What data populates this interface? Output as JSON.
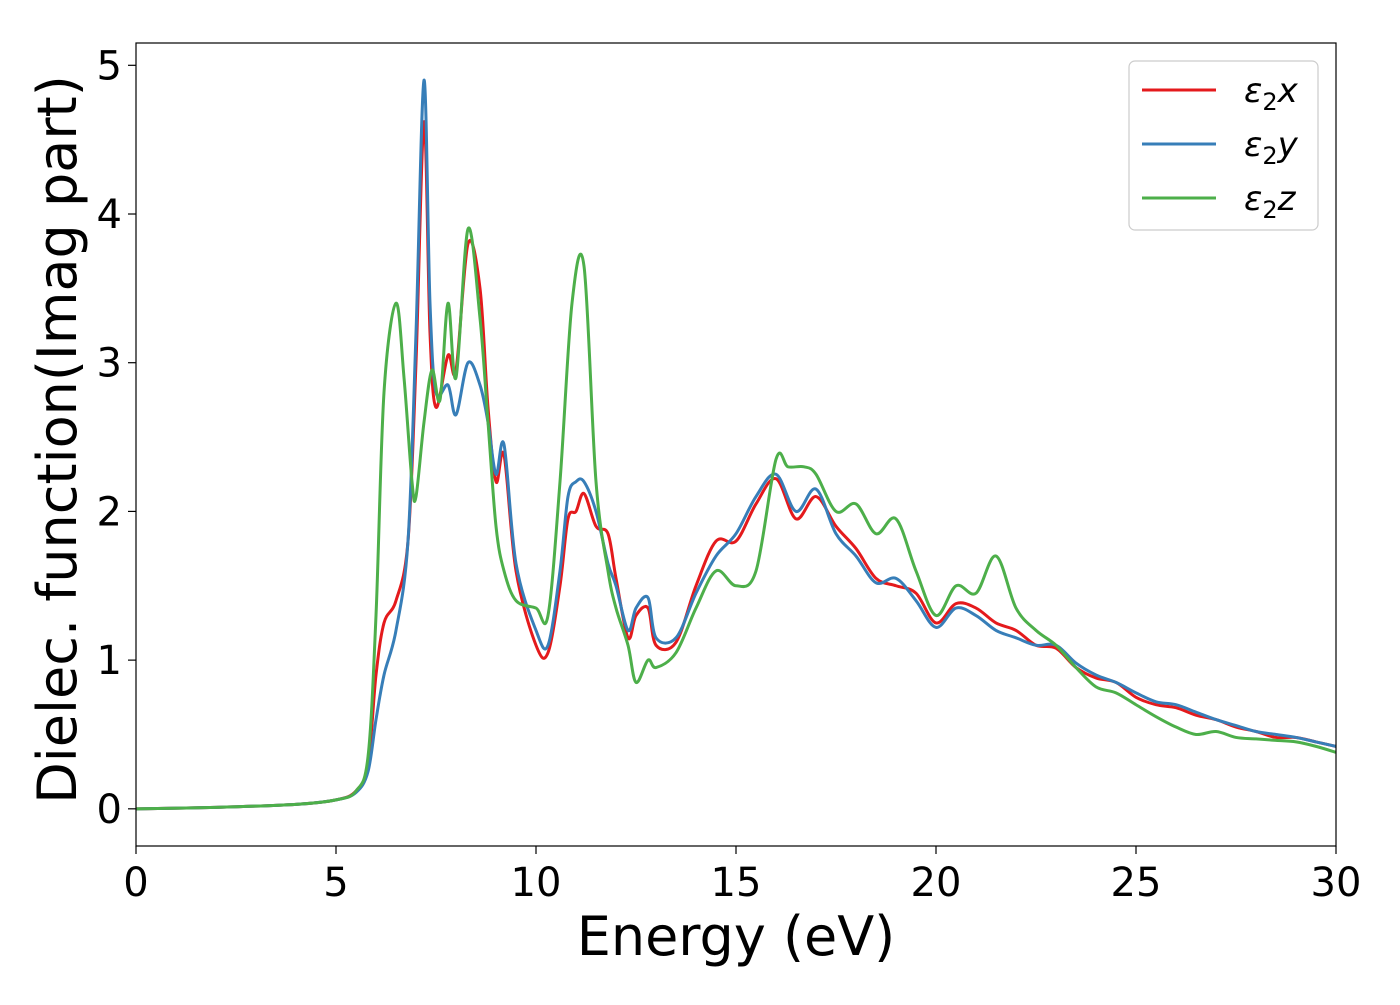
{
  "chart_data": {
    "type": "line",
    "title": "",
    "xlabel": "Energy (eV)",
    "ylabel": "Dielec. function(Imag part)",
    "xlim": [
      0,
      30
    ],
    "ylim": [
      -0.25,
      5.15
    ],
    "xticks": [
      0,
      5,
      10,
      15,
      20,
      25,
      30
    ],
    "yticks": [
      0,
      1,
      2,
      3,
      4,
      5
    ],
    "grid": false,
    "legend_position": "top-right",
    "series": [
      {
        "name": "ε₂x",
        "legend_base": "ε",
        "legend_sub": "2",
        "legend_var": "x",
        "color": "#e41a1c",
        "x": [
          0,
          2,
          4,
          5,
          5.5,
          5.8,
          6.0,
          6.2,
          6.5,
          6.8,
          7.0,
          7.2,
          7.35,
          7.5,
          7.8,
          8.0,
          8.3,
          8.6,
          8.8,
          9.0,
          9.2,
          9.5,
          10.0,
          10.3,
          10.6,
          10.8,
          11.0,
          11.2,
          11.5,
          11.8,
          12.0,
          12.3,
          12.5,
          12.8,
          13.0,
          13.5,
          14.0,
          14.5,
          15.0,
          15.5,
          16.0,
          16.5,
          17.0,
          17.5,
          18.0,
          18.5,
          19.0,
          19.5,
          20.0,
          20.5,
          21.0,
          21.5,
          22.0,
          22.5,
          23.0,
          23.5,
          24.0,
          24.5,
          25.0,
          25.5,
          26.0,
          26.5,
          27.0,
          27.5,
          28.0,
          28.5,
          29.0,
          29.5,
          30.0
        ],
        "y": [
          0,
          0.01,
          0.03,
          0.06,
          0.12,
          0.3,
          0.9,
          1.25,
          1.4,
          1.8,
          3.0,
          4.62,
          3.2,
          2.7,
          3.05,
          2.95,
          3.8,
          3.5,
          2.7,
          2.2,
          2.38,
          1.6,
          1.1,
          1.05,
          1.5,
          1.95,
          2.0,
          2.12,
          1.9,
          1.85,
          1.55,
          1.15,
          1.3,
          1.35,
          1.1,
          1.12,
          1.5,
          1.8,
          1.8,
          2.05,
          2.22,
          1.95,
          2.1,
          1.9,
          1.75,
          1.55,
          1.5,
          1.45,
          1.25,
          1.38,
          1.35,
          1.25,
          1.2,
          1.1,
          1.08,
          0.95,
          0.88,
          0.85,
          0.75,
          0.7,
          0.68,
          0.63,
          0.6,
          0.55,
          0.52,
          0.48,
          0.48,
          0.45,
          0.42
        ]
      },
      {
        "name": "ε₂y",
        "legend_base": "ε",
        "legend_sub": "2",
        "legend_var": "y",
        "color": "#377eb8",
        "x": [
          0,
          2,
          4,
          5,
          5.5,
          5.8,
          6.0,
          6.2,
          6.5,
          6.8,
          7.0,
          7.2,
          7.35,
          7.5,
          7.8,
          8.0,
          8.3,
          8.6,
          8.8,
          9.0,
          9.2,
          9.5,
          10.0,
          10.3,
          10.6,
          10.8,
          11.0,
          11.2,
          11.5,
          11.8,
          12.0,
          12.3,
          12.5,
          12.8,
          13.0,
          13.5,
          14.0,
          14.5,
          15.0,
          15.5,
          16.0,
          16.5,
          17.0,
          17.5,
          18.0,
          18.5,
          19.0,
          19.5,
          20.0,
          20.5,
          21.0,
          21.5,
          22.0,
          22.5,
          23.0,
          23.5,
          24.0,
          24.5,
          25.0,
          25.5,
          26.0,
          26.5,
          27.0,
          27.5,
          28.0,
          28.5,
          29.0,
          29.5,
          30.0
        ],
        "y": [
          0,
          0.01,
          0.03,
          0.06,
          0.11,
          0.25,
          0.6,
          0.9,
          1.2,
          1.8,
          3.2,
          4.9,
          3.4,
          2.8,
          2.85,
          2.65,
          3.0,
          2.85,
          2.6,
          2.25,
          2.45,
          1.65,
          1.2,
          1.1,
          1.6,
          2.1,
          2.2,
          2.2,
          2.0,
          1.65,
          1.5,
          1.2,
          1.35,
          1.42,
          1.15,
          1.15,
          1.45,
          1.7,
          1.85,
          2.1,
          2.25,
          2.0,
          2.15,
          1.85,
          1.7,
          1.52,
          1.55,
          1.4,
          1.22,
          1.35,
          1.3,
          1.2,
          1.15,
          1.1,
          1.1,
          0.98,
          0.9,
          0.85,
          0.78,
          0.72,
          0.7,
          0.65,
          0.6,
          0.56,
          0.52,
          0.5,
          0.48,
          0.45,
          0.42
        ]
      },
      {
        "name": "ε₂z",
        "legend_base": "ε",
        "legend_sub": "2",
        "legend_var": "z",
        "color": "#4daf4a",
        "x": [
          0,
          2,
          4,
          5,
          5.5,
          5.8,
          6.0,
          6.2,
          6.5,
          6.7,
          6.9,
          7.0,
          7.2,
          7.4,
          7.6,
          7.8,
          8.0,
          8.3,
          8.6,
          8.8,
          9.0,
          9.2,
          9.5,
          10.0,
          10.3,
          10.6,
          10.9,
          11.2,
          11.5,
          11.8,
          12.0,
          12.3,
          12.5,
          12.8,
          13.0,
          13.5,
          14.0,
          14.5,
          15.0,
          15.5,
          16.0,
          16.3,
          16.7,
          17.0,
          17.5,
          18.0,
          18.5,
          19.0,
          19.5,
          20.0,
          20.5,
          21.0,
          21.5,
          22.0,
          22.5,
          23.0,
          23.5,
          24.0,
          24.5,
          25.0,
          25.5,
          26.0,
          26.5,
          27.0,
          27.5,
          28.0,
          28.5,
          29.0,
          29.5,
          30.0
        ],
        "y": [
          0,
          0.01,
          0.03,
          0.06,
          0.12,
          0.35,
          1.3,
          2.8,
          3.4,
          2.9,
          2.2,
          2.1,
          2.6,
          2.95,
          2.75,
          3.4,
          2.9,
          3.9,
          3.3,
          2.6,
          1.9,
          1.6,
          1.4,
          1.35,
          1.3,
          2.2,
          3.4,
          3.65,
          2.2,
          1.6,
          1.35,
          1.1,
          0.85,
          1.0,
          0.95,
          1.05,
          1.35,
          1.6,
          1.5,
          1.6,
          2.35,
          2.3,
          2.3,
          2.25,
          2.0,
          2.05,
          1.85,
          1.95,
          1.6,
          1.3,
          1.5,
          1.45,
          1.7,
          1.35,
          1.2,
          1.1,
          0.95,
          0.82,
          0.78,
          0.7,
          0.62,
          0.55,
          0.5,
          0.52,
          0.48,
          0.47,
          0.46,
          0.45,
          0.42,
          0.38
        ]
      }
    ]
  }
}
